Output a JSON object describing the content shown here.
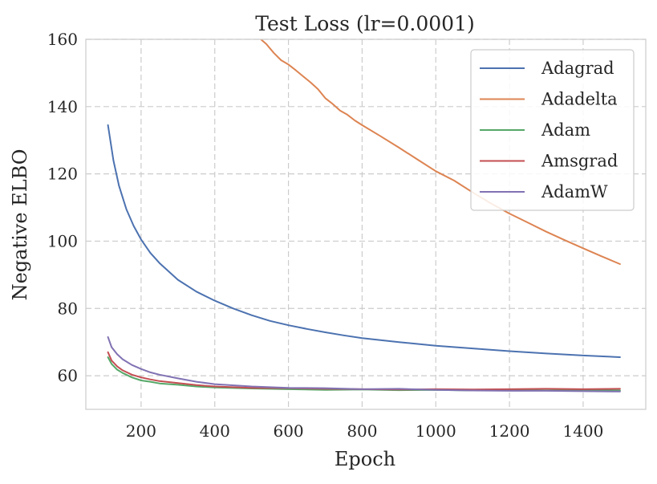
{
  "chart_data": {
    "type": "line",
    "title": "Test Loss (lr=0.0001)",
    "xlabel": "Epoch",
    "ylabel": "Negative ELBO",
    "xlim": [
      50,
      1570
    ],
    "ylim": [
      50,
      160
    ],
    "xticks": [
      200,
      400,
      600,
      800,
      1000,
      1200,
      1400
    ],
    "yticks": [
      60,
      80,
      100,
      120,
      140,
      160
    ],
    "grid": true,
    "legend_position": "top-right",
    "series": [
      {
        "name": "Adagrad",
        "color": "#4c72b0",
        "x": [
          110,
          125,
          140,
          160,
          180,
          200,
          225,
          250,
          300,
          350,
          400,
          450,
          500,
          550,
          600,
          650,
          700,
          750,
          800,
          900,
          1000,
          1100,
          1200,
          1300,
          1400,
          1500
        ],
        "y": [
          134.5,
          124.0,
          116.5,
          109.5,
          104.5,
          100.5,
          96.5,
          93.5,
          88.5,
          85.0,
          82.3,
          80.0,
          78.0,
          76.3,
          75.0,
          73.9,
          72.9,
          72.0,
          71.2,
          70.0,
          68.9,
          68.1,
          67.3,
          66.6,
          66.0,
          65.5
        ]
      },
      {
        "name": "Adadelta",
        "color": "#dd8452",
        "x": [
          520,
          540,
          560,
          580,
          600,
          620,
          640,
          660,
          680,
          700,
          720,
          740,
          760,
          780,
          800,
          850,
          900,
          950,
          1000,
          1050,
          1100,
          1150,
          1200,
          1250,
          1300,
          1350,
          1400,
          1450,
          1500
        ],
        "y": [
          160.5,
          158.6,
          156.0,
          153.8,
          152.5,
          150.8,
          149.0,
          147.2,
          145.2,
          142.5,
          140.8,
          138.8,
          137.6,
          135.9,
          134.5,
          131.2,
          127.8,
          124.3,
          120.8,
          118.0,
          114.5,
          111.2,
          108.2,
          105.5,
          102.8,
          100.3,
          97.9,
          95.5,
          93.2
        ]
      },
      {
        "name": "Adam",
        "color": "#55a868",
        "x": [
          110,
          120,
          135,
          150,
          175,
          200,
          225,
          250,
          300,
          350,
          400,
          500,
          600,
          700,
          800,
          900,
          1000,
          1100,
          1200,
          1300,
          1400,
          1500
        ],
        "y": [
          65.5,
          63.5,
          61.8,
          60.8,
          59.5,
          58.6,
          58.2,
          57.7,
          57.3,
          56.8,
          56.5,
          56.2,
          56.0,
          55.8,
          55.9,
          55.7,
          55.8,
          55.6,
          55.7,
          55.6,
          55.7,
          55.6
        ]
      },
      {
        "name": "Amsgrad",
        "color": "#c44e52",
        "x": [
          110,
          120,
          135,
          150,
          175,
          200,
          225,
          250,
          300,
          350,
          400,
          500,
          600,
          700,
          800,
          900,
          1000,
          1100,
          1200,
          1300,
          1400,
          1500
        ],
        "y": [
          67.0,
          64.5,
          62.8,
          61.6,
          60.3,
          59.5,
          58.9,
          58.4,
          57.8,
          57.2,
          56.8,
          56.4,
          56.3,
          56.1,
          56.0,
          55.9,
          56.0,
          55.9,
          56.0,
          56.1,
          56.0,
          56.1
        ]
      },
      {
        "name": "AdamW",
        "color": "#8172b3",
        "x": [
          110,
          120,
          135,
          150,
          175,
          200,
          225,
          250,
          300,
          350,
          400,
          500,
          600,
          700,
          800,
          900,
          1000,
          1100,
          1200,
          1300,
          1400,
          1500
        ],
        "y": [
          71.5,
          68.5,
          66.4,
          64.9,
          63.2,
          62.0,
          61.0,
          60.3,
          59.2,
          58.2,
          57.5,
          56.8,
          56.4,
          56.3,
          56.0,
          56.1,
          55.8,
          55.6,
          55.5,
          55.5,
          55.4,
          55.3
        ]
      }
    ]
  }
}
